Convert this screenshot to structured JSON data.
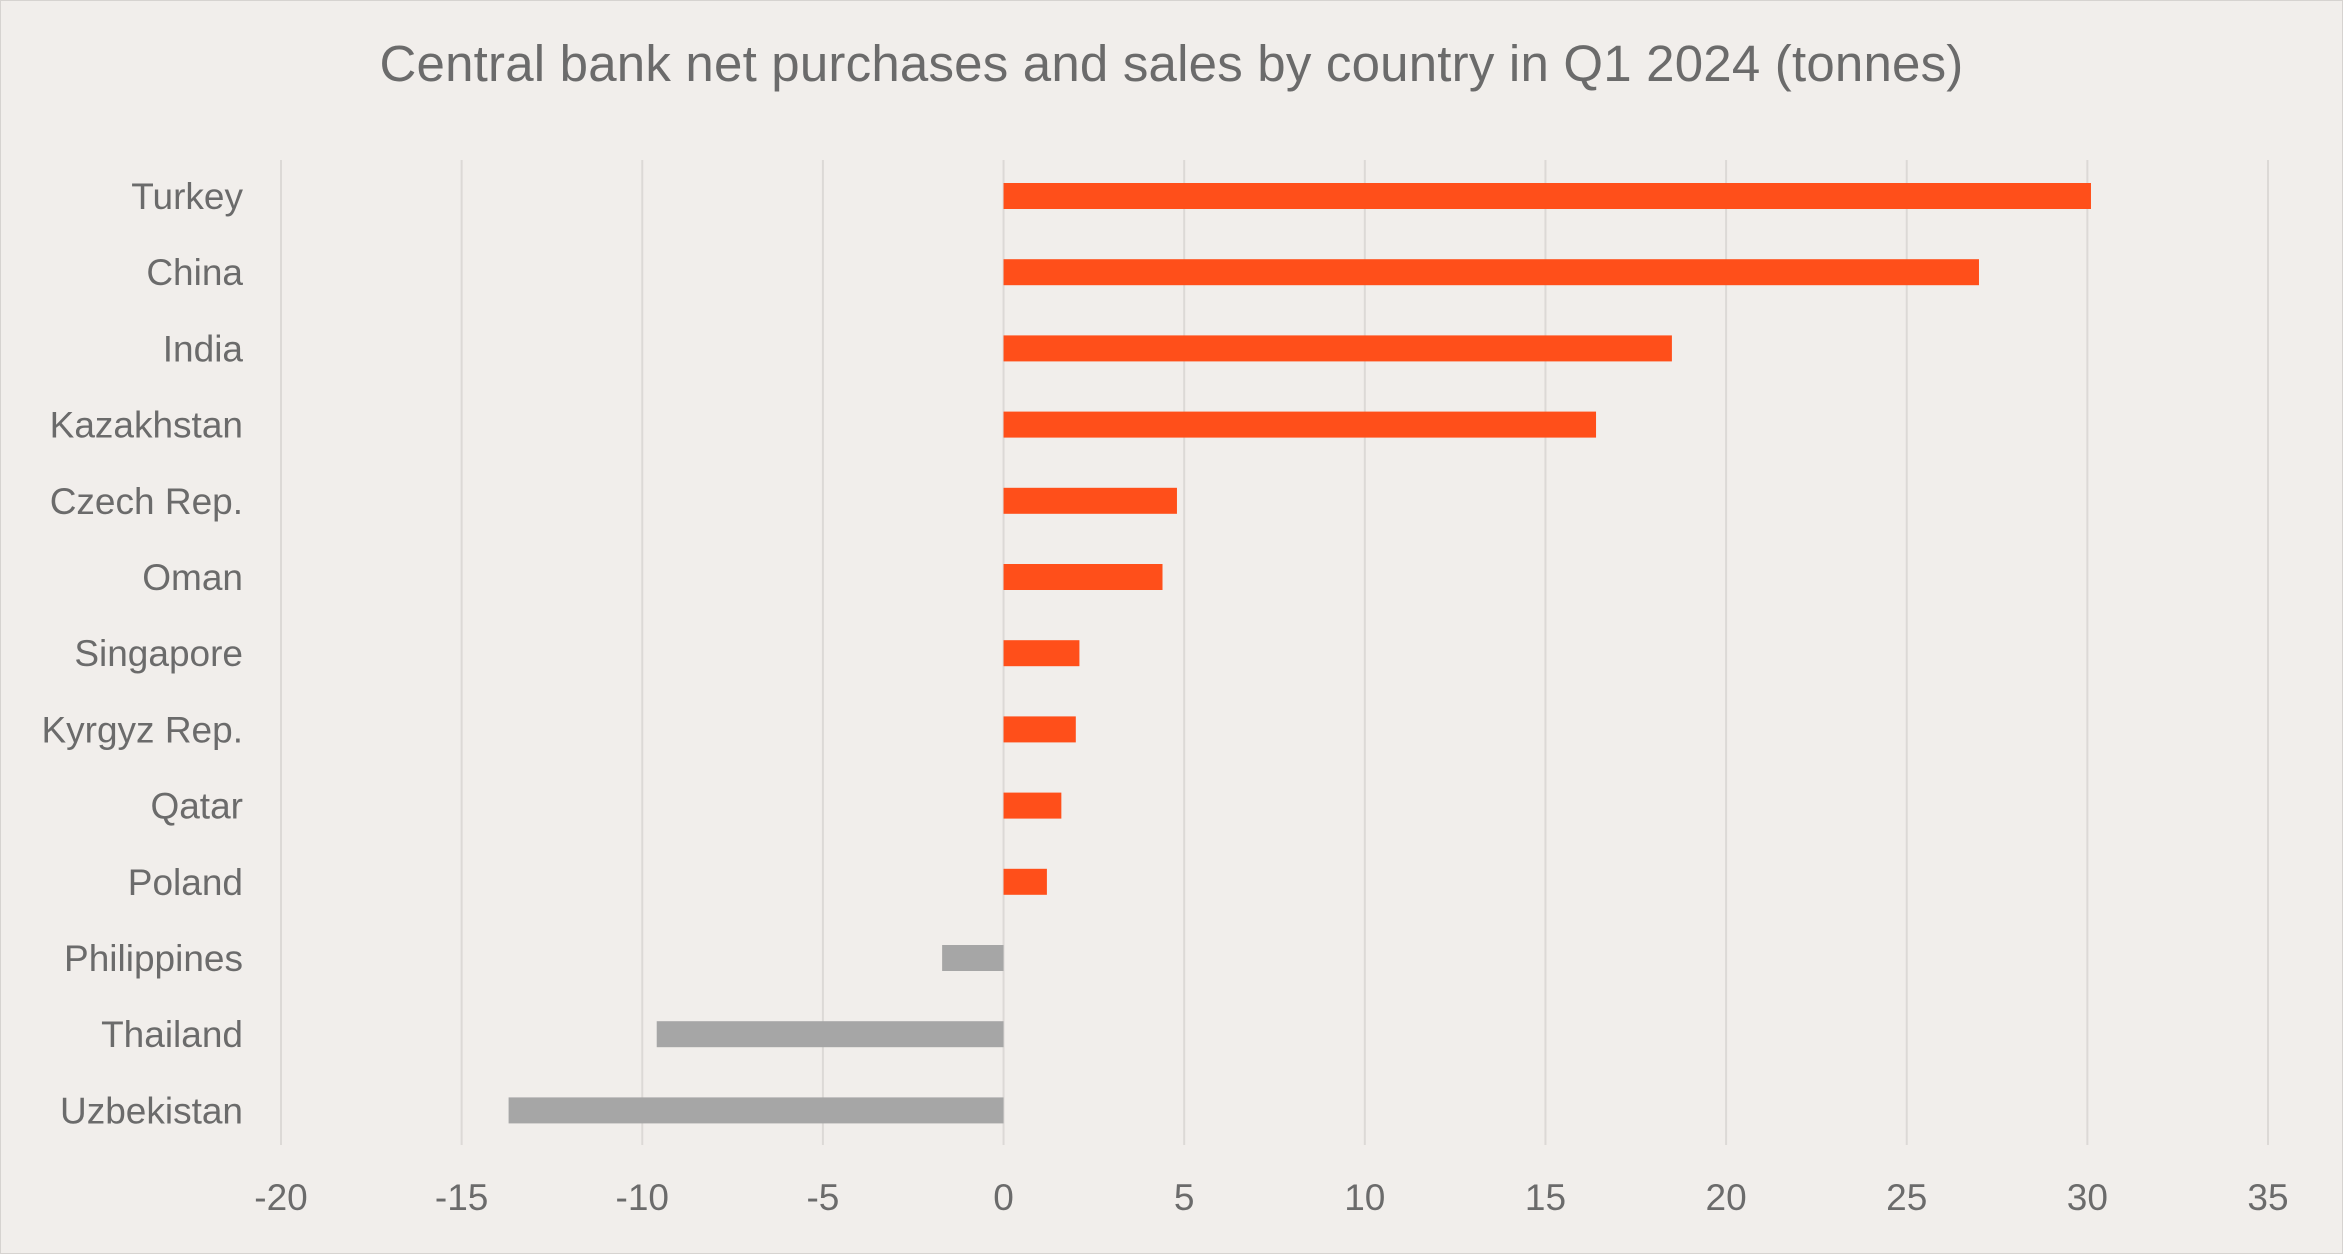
{
  "chart_data": {
    "type": "bar",
    "orientation": "horizontal",
    "title": "Central bank net purchases and sales by country in Q1 2024 (tonnes)",
    "categories": [
      "Turkey",
      "China",
      "India",
      "Kazakhstan",
      "Czech Rep.",
      "Oman",
      "Singapore",
      "Kyrgyz Rep.",
      "Qatar",
      "Poland",
      "Philippines",
      "Thailand",
      "Uzbekistan"
    ],
    "values": [
      30.1,
      27.0,
      18.5,
      16.4,
      4.8,
      4.4,
      2.1,
      2.0,
      1.6,
      1.2,
      -1.7,
      -9.6,
      -13.7
    ],
    "xlim": [
      -20,
      35
    ],
    "xticks": [
      -20,
      -15,
      -10,
      -5,
      0,
      5,
      10,
      15,
      20,
      25,
      30,
      35
    ],
    "xtick_labels": [
      "-20",
      "-15",
      "-10",
      "-5",
      "0",
      "5",
      "10",
      "15",
      "20",
      "25",
      "30",
      "35"
    ],
    "xlabel": "",
    "ylabel": "",
    "grid": "vertical",
    "legend": "none",
    "colors": {
      "positive": "#ff4f1a",
      "negative": "#a6a6a6",
      "background": "#f1eeeb",
      "gridline": "#dcd9d6",
      "text": "#6b6b6b"
    }
  }
}
